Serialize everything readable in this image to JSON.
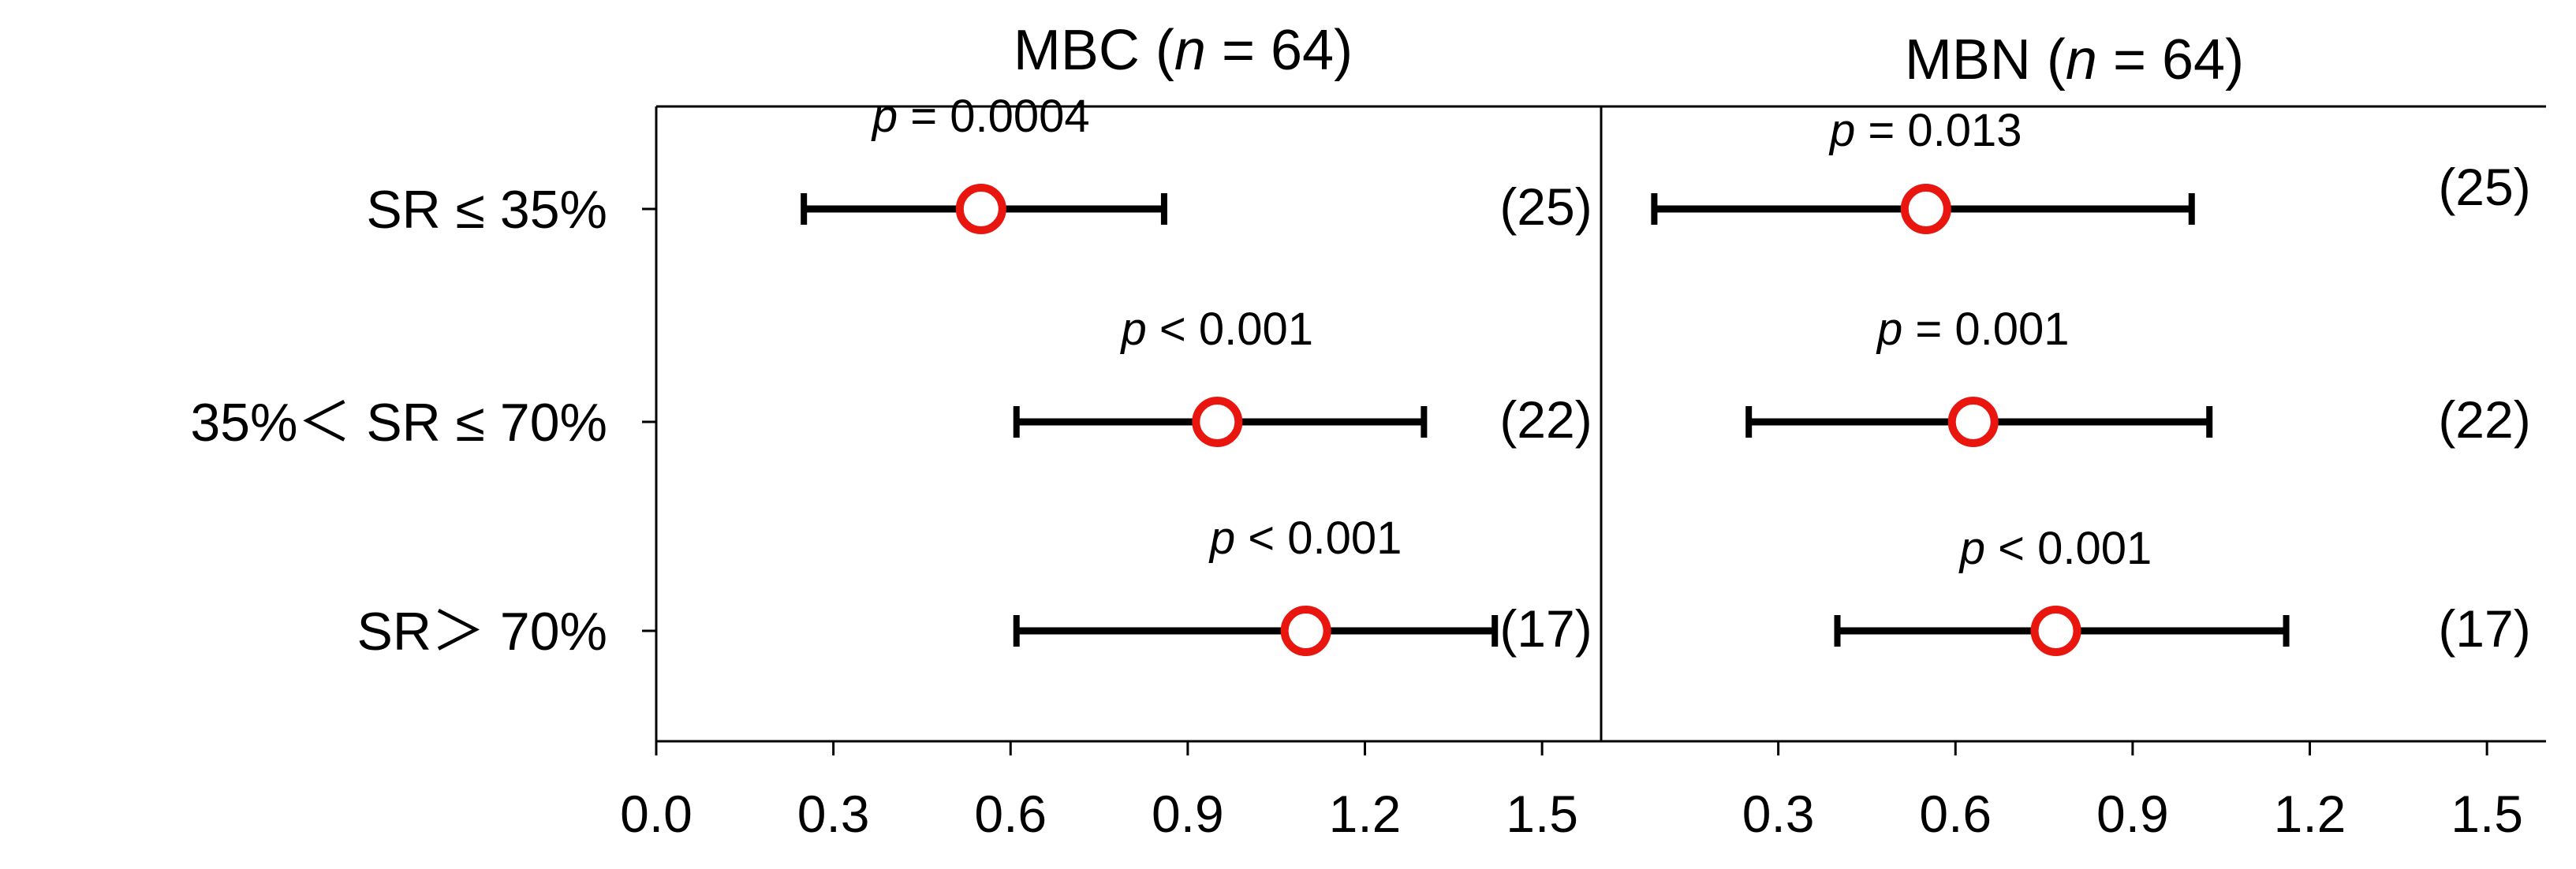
{
  "chart_data": [
    {
      "type": "forest",
      "title_main": "MBC (",
      "title_n": "n",
      "title_rest": " = 64)",
      "categories": [
        "SR ≤  35%",
        "35%＜ SR ≤ 70%",
        "SR＞ 70%"
      ],
      "estimates": [
        0.55,
        0.95,
        1.1
      ],
      "ci_low": [
        0.25,
        0.61,
        0.61
      ],
      "ci_high": [
        0.86,
        1.3,
        1.42
      ],
      "p_values": [
        "= 0.0004",
        "< 0.001",
        "< 0.001"
      ],
      "counts": [
        "(25)",
        "(22)",
        "(17)"
      ],
      "xlim": [
        0.0,
        1.6
      ],
      "xticks": [
        "0.0",
        "0.3",
        "0.6",
        "0.9",
        "1.2",
        "1.5"
      ]
    },
    {
      "type": "forest",
      "title_main": "MBN (",
      "title_n": "n",
      "title_rest": " = 64)",
      "categories": [
        "SR ≤  35%",
        "35%＜ SR ≤ 70%",
        "SR＞ 70%"
      ],
      "estimates": [
        0.55,
        0.63,
        0.77
      ],
      "ci_low": [
        0.09,
        0.25,
        0.4
      ],
      "ci_high": [
        1.0,
        1.03,
        1.16
      ],
      "p_values": [
        "= 0.013",
        "= 0.001",
        "< 0.001"
      ],
      "counts": [
        "(25)",
        "(22)",
        "(17)"
      ],
      "xlim": [
        0.0,
        1.6
      ],
      "xticks": [
        "0.3",
        "0.6",
        "0.9",
        "1.2",
        "1.5"
      ]
    }
  ],
  "p_symbol": "p",
  "colors": {
    "marker": "#e8160f",
    "line": "#000000"
  }
}
